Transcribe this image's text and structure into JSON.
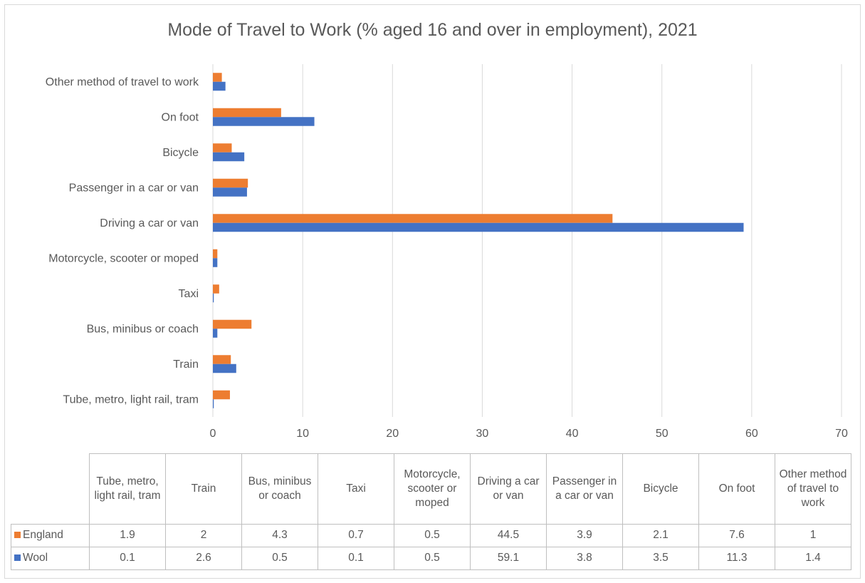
{
  "chart_data": {
    "type": "bar",
    "orientation": "horizontal",
    "title": "Mode of Travel to Work (% aged 16 and over in employment), 2021",
    "categories": [
      "Tube, metro, light rail, tram",
      "Train",
      "Bus, minibus or coach",
      "Taxi",
      "Motorcycle, scooter or moped",
      "Driving a car or van",
      "Passenger in a car or van",
      "Bicycle",
      "On foot",
      "Other method of travel to work"
    ],
    "table_headers": [
      "Tube, metro, light rail, tram",
      "Train",
      "Bus, minibus or coach",
      "Taxi",
      "Motorcycle, scooter or moped",
      "Driving a car or van",
      "Passenger in a car or van",
      "Bicycle",
      "On foot",
      "Other method of travel to work"
    ],
    "series": [
      {
        "name": "England",
        "color": "#ed7d31",
        "values": [
          1.9,
          2,
          4.3,
          0.7,
          0.5,
          44.5,
          3.9,
          2.1,
          7.6,
          1
        ]
      },
      {
        "name": "Wool",
        "color": "#4472c4",
        "values": [
          0.1,
          2.6,
          0.5,
          0.1,
          0.5,
          59.1,
          3.8,
          3.5,
          11.3,
          1.4
        ]
      }
    ],
    "xlim": [
      0,
      70
    ],
    "xticks": [
      "0",
      "10",
      "20",
      "30",
      "40",
      "50",
      "60",
      "70"
    ],
    "grid": true,
    "legend": "data-table"
  }
}
